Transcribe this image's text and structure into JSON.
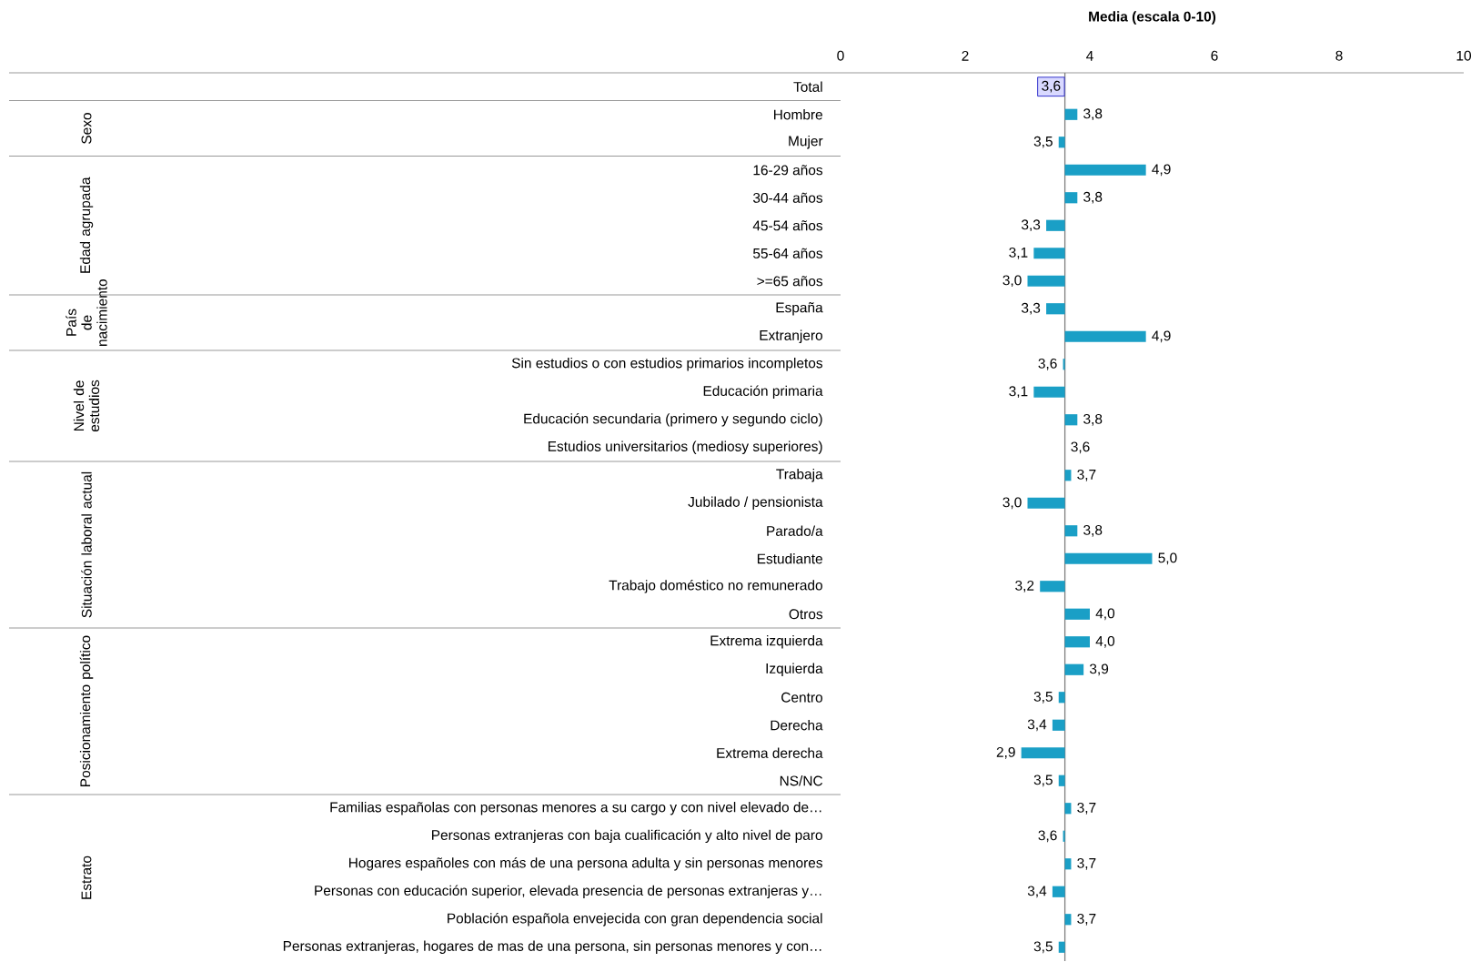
{
  "chart_data": {
    "type": "bar",
    "orientation": "horizontal",
    "xlabel": "Media (escala 0-10)",
    "categories": [
      "Total",
      "Hombre",
      "Mujer",
      "16-29 años",
      "30-44 años",
      "45-54 años",
      "55-64 años",
      ">=65 años",
      "España",
      "Extranjero",
      "Sin estudios o con estudios primarios incompletos",
      "Educación primaria",
      "Educación secundaria (primero y segundo ciclo)",
      "Estudios universitarios (mediosy superiores)",
      "Trabaja",
      "Jubilado / pensionista",
      "Parado/a",
      "Estudiante",
      "Trabajo doméstico no remunerado",
      "Otros",
      "Extrema izquierda",
      "Izquierda",
      "Centro",
      "Derecha",
      "Extrema derecha",
      "NS/NC",
      "Familias españolas con personas menores a su cargo y con nivel elevado de…",
      "Personas extranjeras con baja cualificación y alto nivel de paro",
      "Hogares españoles con más de una persona  adulta y sin personas menores",
      "Personas con educación superior, elevada presencia de personas extranjeras y…",
      "Población española envejecida con gran dependencia social",
      "Personas extranjeras, hogares de mas de una persona, sin personas menores y con…"
    ],
    "base": [
      null,
      3.6,
      3.6,
      3.6,
      3.6,
      3.6,
      3.6,
      3.6,
      3.6,
      3.6,
      3.6,
      3.6,
      3.6,
      null,
      3.6,
      3.6,
      3.6,
      3.6,
      3.6,
      3.6,
      3.6,
      3.6,
      3.6,
      3.6,
      3.6,
      3.6,
      3.6,
      3.6,
      3.6,
      3.6,
      3.6,
      3.6
    ],
    "values": [
      null,
      0.2,
      -0.1,
      1.3,
      0.2,
      -0.3,
      -0.5,
      -0.6,
      -0.3,
      1.3,
      -0.03,
      -0.5,
      0.2,
      null,
      0.1,
      -0.6,
      0.2,
      1.4,
      -0.4,
      0.4,
      0.4,
      0.3,
      -0.1,
      -0.2,
      -0.7,
      -0.1,
      0.1,
      -0.03,
      0.1,
      -0.2,
      0.1,
      -0.1
    ],
    "value_labels": [
      null,
      "3,8",
      "3,5",
      "4,9",
      "3,8",
      "3,3",
      "3,1",
      "3,0",
      "3,3",
      "4,9",
      "3,6",
      "3,1",
      "3,8",
      "3,6",
      "3,7",
      "3,0",
      "3,8",
      "5,0",
      "3,2",
      "4,0",
      "4,0",
      "3,9",
      "3,5",
      "3,4",
      "2,9",
      "3,5",
      "3,7",
      "3,6",
      "3,7",
      "3,4",
      "3,7",
      "3,5"
    ],
    "color": "#1a9fc6",
    "xlim": [
      0,
      10
    ],
    "xticks": [
      0,
      2,
      4,
      6,
      8,
      10
    ],
    "ref_lines": [
      {
        "axis": "x",
        "value": 3.6,
        "label": "3,6",
        "color": "#7f7f7f"
      }
    ],
    "annotations": [
      "Sexo",
      "Edad agrupada",
      "País de nacimiento",
      "Nivel de estudios",
      "Situación laboral actual",
      "Posicionamiento político",
      "Estrato"
    ]
  }
}
